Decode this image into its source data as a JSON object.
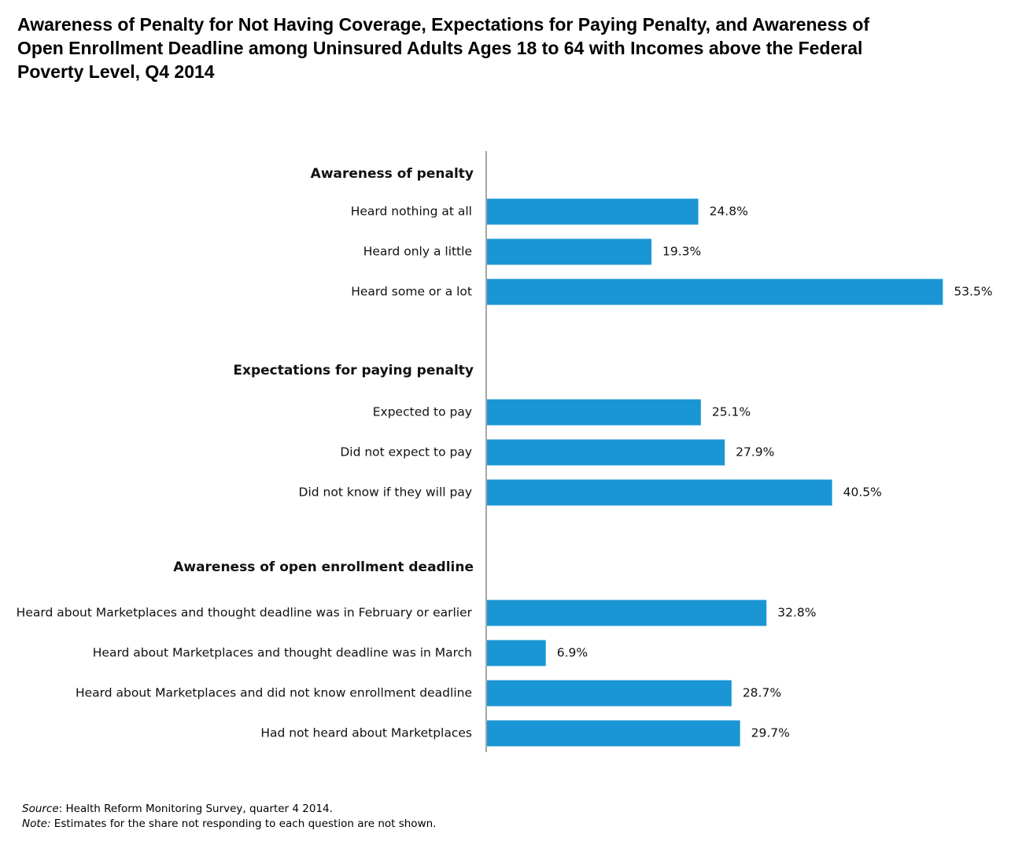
{
  "chart_data": {
    "type": "bar",
    "orientation": "horizontal",
    "title": "Awareness of Penalty for Not Having Coverage, Expectations for Paying Penalty, and Awareness of Open Enrollment Deadline among Uninsured Adults Ages 18 to 64 with Incomes above the Federal Poverty Level, Q4 2014",
    "value_suffix": "%",
    "bar_color": "#1a96d4",
    "groups": [
      {
        "label": "Awareness of penalty",
        "bars": [
          {
            "category": "Heard nothing at all",
            "value": 24.8,
            "label": "24.8%"
          },
          {
            "category": "Heard only a little",
            "value": 19.3,
            "label": "19.3%"
          },
          {
            "category": "Heard some or a lot",
            "value": 53.5,
            "label": "53.5%"
          }
        ]
      },
      {
        "label": "Expectations for paying penalty",
        "bars": [
          {
            "category": "Expected to pay",
            "value": 25.1,
            "label": "25.1%"
          },
          {
            "category": "Did not expect to pay",
            "value": 27.9,
            "label": "27.9%"
          },
          {
            "category": "Did not know if they will pay",
            "value": 40.5,
            "label": "40.5%"
          }
        ]
      },
      {
        "label": "Awareness of open enrollment deadline",
        "bars": [
          {
            "category": "Heard about Marketplaces and thought deadline was in February or earlier",
            "value": 32.8,
            "label": "32.8%"
          },
          {
            "category": "Heard about Marketplaces and thought deadline was in March",
            "value": 6.9,
            "label": "6.9%"
          },
          {
            "category": "Heard about Marketplaces and did not know enrollment deadline",
            "value": 28.7,
            "label": "28.7%"
          },
          {
            "category": "Had not heard about Marketplaces",
            "value": 29.7,
            "label": "29.7%"
          }
        ]
      }
    ],
    "grid": false,
    "legend": "none"
  },
  "notes": {
    "source_label": "Source",
    "source_text": ": Health Reform Monitoring Survey, quarter 4 2014.",
    "note_label": "Note:",
    "note_text": " Estimates for the share not responding to each question are not shown."
  }
}
